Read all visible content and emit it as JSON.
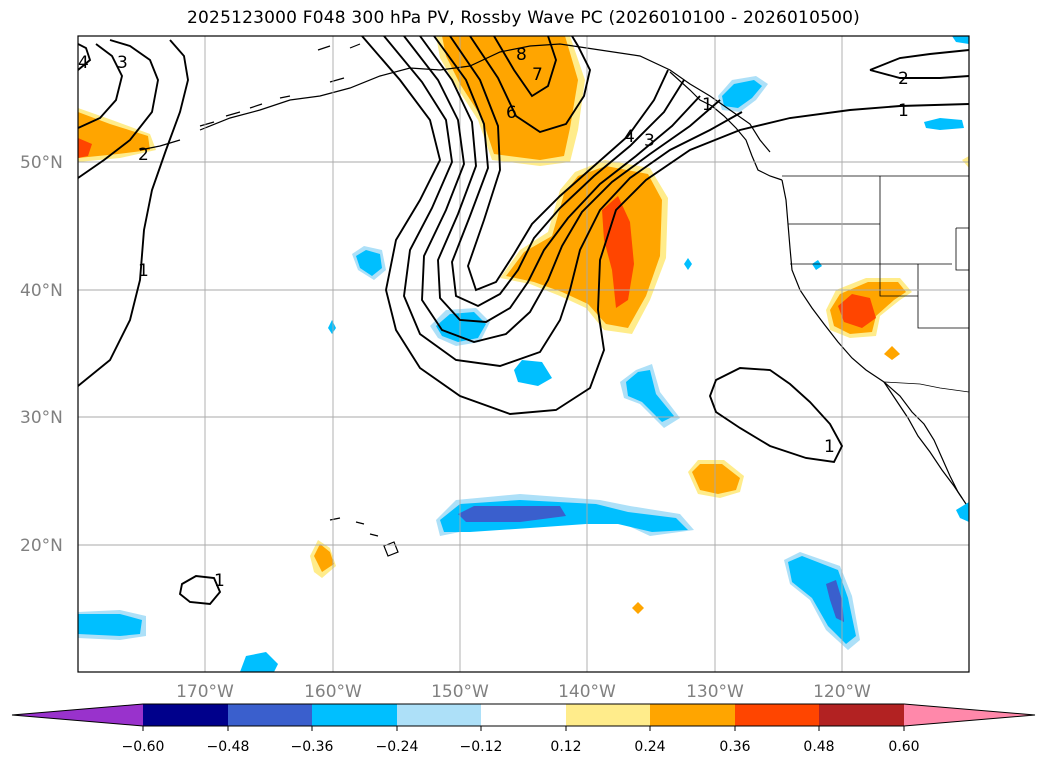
{
  "title": "2025123000 F048 300 hPa PV, Rossby Wave PC (2026010100 - 2026010500)",
  "colors": {
    "neg_060": "#9932CC",
    "neg_048": "#00008B",
    "neg_036": "#3A5FCD",
    "neg_024": "#00BFFF",
    "neg_012": "#ADE0F8",
    "zero": "#FFFFFF",
    "pos_012": "#FFEC8B",
    "pos_024": "#FFA500",
    "pos_036": "#FF4500",
    "pos_048": "#B22222",
    "pos_060": "#FF88AA",
    "grid": "#AAAAAA",
    "coast": "#000000",
    "contour": "#000000",
    "axis_label": "#808080"
  },
  "map": {
    "projection": "Plate Carree",
    "lon_range": [
      -180,
      -110
    ],
    "lat_range": [
      10,
      60
    ],
    "lat_ticks": [
      {
        "value": 50,
        "label": "50°N"
      },
      {
        "value": 40,
        "label": "40°N"
      },
      {
        "value": 30,
        "label": "30°N"
      },
      {
        "value": 20,
        "label": "20°N"
      }
    ],
    "lon_ticks": [
      {
        "value": -170,
        "label": "170°W"
      },
      {
        "value": -160,
        "label": "160°W"
      },
      {
        "value": -150,
        "label": "150°W"
      },
      {
        "value": -140,
        "label": "140°W"
      },
      {
        "value": -130,
        "label": "130°W"
      },
      {
        "value": -120,
        "label": "120°W"
      }
    ],
    "pv_contour_labels": [
      "3",
      "4",
      "2",
      "1",
      "8",
      "6",
      "7",
      "4",
      "3",
      "2",
      "1",
      "1",
      "1",
      "1"
    ]
  },
  "colorbar": {
    "levels": [
      "−0.60",
      "−0.48",
      "−0.36",
      "−0.24",
      "−0.12",
      "0.12",
      "0.24",
      "0.36",
      "0.48",
      "0.60"
    ],
    "extend": "both"
  }
}
